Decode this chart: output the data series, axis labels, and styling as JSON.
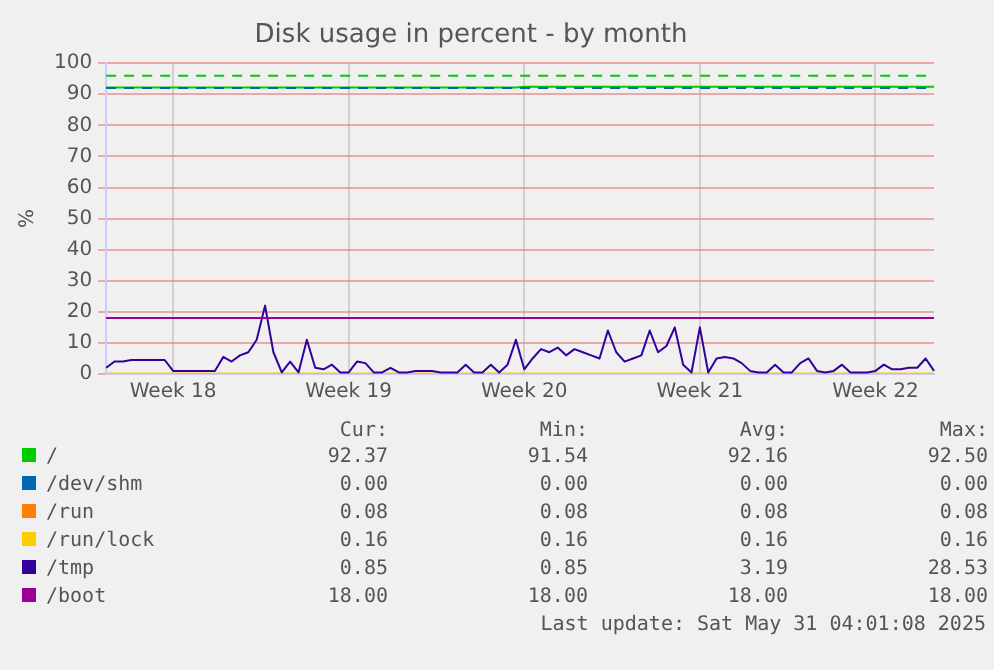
{
  "chart_data": {
    "type": "line",
    "title": "Disk usage in percent - by month",
    "ylabel": "%",
    "categories": [
      null,
      null,
      null,
      null,
      null,
      null,
      null,
      null,
      "Week 18",
      null,
      null,
      null,
      null,
      null,
      null,
      null,
      null,
      null,
      null,
      null,
      null,
      null,
      null,
      null,
      null,
      null,
      null,
      null,
      null,
      "Week 19",
      null,
      null,
      null,
      null,
      null,
      null,
      null,
      null,
      null,
      null,
      null,
      null,
      null,
      null,
      null,
      null,
      null,
      null,
      null,
      null,
      "Week 20",
      null,
      null,
      null,
      null,
      null,
      null,
      null,
      null,
      null,
      null,
      null,
      null,
      null,
      null,
      null,
      null,
      null,
      null,
      null,
      null,
      "Week 21",
      null,
      null,
      null,
      null,
      null,
      null,
      null,
      null,
      null,
      null,
      null,
      null,
      null,
      null,
      null,
      null,
      null,
      null,
      null,
      null,
      "Week 22",
      null,
      null,
      null,
      null,
      null,
      null,
      null
    ],
    "ylim": [
      0,
      100
    ],
    "yticks": [
      0,
      10,
      20,
      30,
      40,
      50,
      60,
      70,
      80,
      90,
      100
    ],
    "grid": true,
    "legend": "bottom",
    "marker": "none",
    "line_style": "solid",
    "series": [
      {
        "name": "/",
        "color": "#00cc00",
        "values": [
          92.2,
          92.2,
          92.2,
          92.2,
          92.2,
          92.2,
          92.2,
          92.2,
          92.2,
          92.2,
          92.2,
          92.2,
          92.2,
          92.2,
          92.2,
          92.2,
          92.2,
          92.2,
          92.2,
          92.2,
          92.2,
          92.2,
          92.2,
          92.2,
          92.2,
          92.2,
          92.2,
          92.2,
          92.2,
          92.2,
          92.2,
          92.2,
          92.2,
          92.2,
          92.2,
          92.2,
          92.2,
          92.2,
          92.2,
          92.2,
          92.2,
          92.2,
          92.2,
          92.2,
          92.2,
          92.2,
          92.2,
          92.2,
          92.2,
          92.2,
          92.4,
          92.4,
          92.4,
          92.4,
          92.4,
          92.4,
          92.4,
          92.4,
          92.4,
          92.4,
          92.4,
          92.4,
          92.4,
          92.4,
          92.4,
          92.4,
          92.4,
          92.4,
          92.4,
          92.4,
          92.4,
          92.4,
          92.4,
          92.4,
          92.4,
          92.4,
          92.4,
          92.4,
          92.4,
          92.4,
          92.4,
          92.4,
          92.4,
          92.4,
          92.4,
          92.4,
          92.4,
          92.4,
          92.4,
          92.4,
          92.4,
          92.4,
          92.4,
          92.4,
          92.4,
          92.4,
          92.4,
          92.4,
          92.4,
          92.4
        ]
      },
      {
        "name": "/dev/shm",
        "color": "#0066b3",
        "values": [
          null,
          null,
          null,
          null,
          null,
          null,
          null,
          null,
          null,
          null,
          null,
          null,
          null,
          null,
          null,
          null,
          null,
          null,
          null,
          null,
          null,
          null,
          null,
          null,
          null,
          null,
          null,
          null,
          null,
          null,
          null,
          null,
          null,
          null,
          null,
          null,
          null,
          null,
          null,
          null,
          null,
          null,
          null,
          null,
          null,
          null,
          null,
          null,
          null,
          null,
          null,
          null,
          null,
          null,
          null,
          null,
          null,
          null,
          null,
          null,
          null,
          null,
          null,
          null,
          null,
          null,
          null,
          null,
          null,
          null,
          null,
          null,
          null,
          null,
          null,
          null,
          null,
          null,
          null,
          null,
          null,
          null,
          null,
          null,
          null,
          null,
          null,
          null,
          null,
          null,
          null,
          null,
          null,
          null,
          null,
          null,
          null,
          null,
          null,
          null
        ]
      },
      {
        "name": "/run",
        "color": "#ff8000",
        "values": [
          null,
          null,
          null,
          null,
          null,
          null,
          null,
          null,
          null,
          null,
          null,
          null,
          null,
          null,
          null,
          null,
          null,
          null,
          null,
          null,
          null,
          null,
          null,
          null,
          null,
          null,
          null,
          null,
          null,
          null,
          null,
          null,
          null,
          null,
          null,
          null,
          null,
          null,
          null,
          null,
          null,
          null,
          null,
          null,
          null,
          null,
          null,
          null,
          null,
          null,
          null,
          null,
          null,
          null,
          null,
          null,
          null,
          null,
          null,
          null,
          null,
          null,
          null,
          null,
          null,
          null,
          null,
          null,
          null,
          null,
          null,
          null,
          null,
          null,
          null,
          null,
          null,
          null,
          null,
          null,
          null,
          null,
          null,
          null,
          null,
          null,
          null,
          null,
          null,
          null,
          null,
          null,
          null,
          null,
          null,
          null,
          null,
          null,
          null,
          null
        ]
      },
      {
        "name": "/run/lock",
        "color": "#ffcc00",
        "values": [
          0.16,
          0.16,
          0.16,
          0.16,
          0.16,
          0.16,
          0.16,
          0.16,
          0.16,
          0.16,
          0.16,
          0.16,
          0.16,
          0.16,
          0.16,
          0.16,
          0.16,
          0.16,
          0.16,
          0.16,
          0.16,
          0.16,
          0.16,
          0.16,
          0.16,
          0.16,
          0.16,
          0.16,
          0.16,
          0.16,
          0.16,
          0.16,
          0.16,
          0.16,
          0.16,
          0.16,
          0.16,
          0.16,
          0.16,
          0.16,
          0.16,
          0.16,
          0.16,
          0.16,
          0.16,
          0.16,
          0.16,
          0.16,
          0.16,
          0.16,
          0.16,
          0.16,
          0.16,
          0.16,
          0.16,
          0.16,
          0.16,
          0.16,
          0.16,
          0.16,
          0.16,
          0.16,
          0.16,
          0.16,
          0.16,
          0.16,
          0.16,
          0.16,
          0.16,
          0.16,
          0.16,
          0.16,
          0.16,
          0.16,
          0.16,
          0.16,
          0.16,
          0.16,
          0.16,
          0.16,
          0.16,
          0.16,
          0.16,
          0.16,
          0.16,
          0.16,
          0.16,
          0.16,
          0.16,
          0.16,
          0.16,
          0.16,
          0.16,
          0.16,
          0.16,
          0.16,
          0.16,
          0.16,
          0.16,
          0.16
        ]
      },
      {
        "name": "/tmp",
        "color": "#330099",
        "values": [
          2,
          4,
          4,
          4.5,
          4.5,
          4.5,
          4.5,
          4.5,
          1,
          1,
          1,
          1,
          1,
          1,
          5.5,
          4,
          6,
          7,
          11,
          22,
          7,
          0.5,
          4,
          0.5,
          11,
          2,
          1.5,
          3,
          0.5,
          0.5,
          4,
          3.5,
          0.5,
          0.5,
          2,
          0.5,
          0.5,
          1,
          1,
          1,
          0.5,
          0.5,
          0.5,
          3,
          0.5,
          0.5,
          3,
          0.5,
          3,
          11,
          1.5,
          5,
          8,
          7,
          8.5,
          6,
          8,
          7,
          6,
          5,
          14,
          7,
          4,
          5,
          6,
          14,
          7,
          9,
          15,
          3,
          0.5,
          15,
          0.5,
          5,
          5.5,
          5,
          3.5,
          1,
          0.5,
          0.5,
          3,
          0.5,
          0.5,
          3.5,
          5,
          1,
          0.5,
          1,
          3,
          0.5,
          0.5,
          0.5,
          1,
          3,
          1.5,
          1.5,
          2,
          2,
          5,
          1
        ]
      },
      {
        "name": "/boot",
        "color": "#990099",
        "values": [
          18,
          18,
          18,
          18,
          18,
          18,
          18,
          18,
          18,
          18,
          18,
          18,
          18,
          18,
          18,
          18,
          18,
          18,
          18,
          18,
          18,
          18,
          18,
          18,
          18,
          18,
          18,
          18,
          18,
          18,
          18,
          18,
          18,
          18,
          18,
          18,
          18,
          18,
          18,
          18,
          18,
          18,
          18,
          18,
          18,
          18,
          18,
          18,
          18,
          18,
          18,
          18,
          18,
          18,
          18,
          18,
          18,
          18,
          18,
          18,
          18,
          18,
          18,
          18,
          18,
          18,
          18,
          18,
          18,
          18,
          18,
          18,
          18,
          18,
          18,
          18,
          18,
          18,
          18,
          18,
          18,
          18,
          18,
          18,
          18,
          18,
          18,
          18,
          18,
          18,
          18,
          18,
          18,
          18,
          18,
          18,
          18,
          18,
          18,
          18
        ]
      }
    ],
    "ref_lines": [
      {
        "axis": "y",
        "value": 96,
        "color": "#00cc00",
        "line_style": "dashed"
      },
      {
        "axis": "y",
        "value": 92,
        "color": "#0066b3",
        "line_style": "dashed"
      }
    ],
    "annotations": [
      "Cur:",
      "Min:",
      "Avg:",
      "Max:",
      "92.37",
      "91.54",
      "92.16",
      "92.50",
      "0.00",
      "0.00",
      "0.00",
      "0.00",
      "0.08",
      "0.08",
      "0.08",
      "0.08",
      "0.16",
      "0.16",
      "0.16",
      "0.16",
      "0.85",
      "0.85",
      "3.19",
      "28.53",
      "18.00",
      "18.00",
      "18.00",
      "18.00",
      "Last update: Sat May 31 04:01:08 2025"
    ]
  }
}
